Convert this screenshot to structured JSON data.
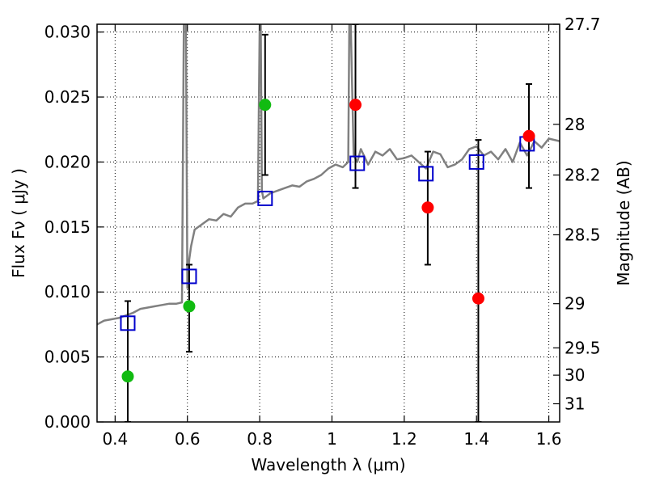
{
  "chart_data": {
    "type": "scatter",
    "xlabel": "Wavelength  λ (μm)",
    "ylabel": "Flux  Fν  ( μJy )",
    "y2label": "Magnitude (AB)",
    "xlim": [
      0.35,
      1.63
    ],
    "ylim": [
      0.0,
      0.0306
    ],
    "grid": true,
    "x_ticks": [
      0.4,
      0.6,
      0.8,
      1.0,
      1.2,
      1.4,
      1.6
    ],
    "x_tick_labels": [
      "0.4",
      "0.6",
      "0.8",
      "1",
      "1.2",
      "1.4",
      "1.6"
    ],
    "y_ticks": [
      0.0,
      0.005,
      0.01,
      0.015,
      0.02,
      0.025,
      0.03
    ],
    "y_tick_labels": [
      "0.000",
      "0.005",
      "0.010",
      "0.015",
      "0.020",
      "0.025",
      "0.030"
    ],
    "y2_ticks": [
      {
        "label": "27.7",
        "flux": 0.0306
      },
      {
        "label": "28",
        "flux": 0.0229
      },
      {
        "label": "28.2",
        "flux": 0.019
      },
      {
        "label": "28.5",
        "flux": 0.0144
      },
      {
        "label": "29",
        "flux": 0.0091
      },
      {
        "label": "29.5",
        "flux": 0.0057
      },
      {
        "label": "30",
        "flux": 0.0036
      },
      {
        "label": "31",
        "flux": 0.0014
      }
    ],
    "colors": {
      "model": "#808080",
      "green_points": "#11bb11",
      "red_points": "#ff0000",
      "model_boxes": "#0000cc",
      "errorbars": "#000000"
    },
    "series": [
      {
        "name": "",
        "style": "model-spectrum-line",
        "x": [
          0.35,
          0.37,
          0.39,
          0.41,
          0.43,
          0.45,
          0.47,
          0.49,
          0.51,
          0.53,
          0.55,
          0.57,
          0.585,
          0.59,
          0.593,
          0.596,
          0.6,
          0.605,
          0.61,
          0.62,
          0.64,
          0.66,
          0.68,
          0.7,
          0.72,
          0.74,
          0.76,
          0.78,
          0.795,
          0.8,
          0.803,
          0.806,
          0.81,
          0.83,
          0.85,
          0.87,
          0.89,
          0.91,
          0.93,
          0.95,
          0.97,
          0.99,
          1.01,
          1.03,
          1.045,
          1.048,
          1.052,
          1.06,
          1.07,
          1.08,
          1.1,
          1.12,
          1.14,
          1.16,
          1.18,
          1.2,
          1.22,
          1.24,
          1.26,
          1.28,
          1.3,
          1.32,
          1.34,
          1.36,
          1.38,
          1.4,
          1.42,
          1.44,
          1.46,
          1.48,
          1.5,
          1.52,
          1.54,
          1.56,
          1.58,
          1.6,
          1.63
        ],
        "y": [
          0.0075,
          0.0078,
          0.0079,
          0.008,
          0.0082,
          0.0084,
          0.0087,
          0.0088,
          0.0089,
          0.009,
          0.0091,
          0.0091,
          0.0092,
          0.0306,
          0.0306,
          0.0306,
          0.0103,
          0.0125,
          0.0135,
          0.0148,
          0.0152,
          0.0156,
          0.0155,
          0.016,
          0.0158,
          0.0165,
          0.0168,
          0.0168,
          0.017,
          0.0306,
          0.0306,
          0.0178,
          0.0172,
          0.0176,
          0.0178,
          0.018,
          0.0182,
          0.0181,
          0.0185,
          0.0187,
          0.019,
          0.0195,
          0.0198,
          0.0196,
          0.02,
          0.0306,
          0.0306,
          0.0205,
          0.02,
          0.021,
          0.0198,
          0.0208,
          0.0205,
          0.021,
          0.0202,
          0.0203,
          0.0205,
          0.02,
          0.0195,
          0.0208,
          0.0206,
          0.0196,
          0.0198,
          0.0202,
          0.021,
          0.0212,
          0.0205,
          0.0208,
          0.0202,
          0.021,
          0.02,
          0.0215,
          0.0205,
          0.0216,
          0.0211,
          0.0218,
          0.0216
        ]
      },
      {
        "name": "",
        "style": "green-circles",
        "x": [
          0.435,
          0.605,
          0.815
        ],
        "y": [
          0.0035,
          0.0089,
          0.0244
        ],
        "yerr_low": [
          0.0,
          0.0054,
          0.019
        ],
        "yerr_high": [
          0.0093,
          0.0121,
          0.0298
        ]
      },
      {
        "name": "",
        "style": "red-circles",
        "x": [
          1.065,
          1.265,
          1.405,
          1.545
        ],
        "y": [
          0.0244,
          0.0165,
          0.0095,
          0.022
        ],
        "yerr_low": [
          0.018,
          0.0121,
          0.0,
          0.018
        ],
        "yerr_high": [
          0.0306,
          0.0208,
          0.0217,
          0.026
        ]
      },
      {
        "name": "",
        "style": "blue-open-squares",
        "x": [
          0.435,
          0.605,
          0.815,
          1.07,
          1.26,
          1.4,
          1.54
        ],
        "y": [
          0.0076,
          0.0112,
          0.0172,
          0.0199,
          0.0191,
          0.02,
          0.0214
        ]
      }
    ]
  }
}
